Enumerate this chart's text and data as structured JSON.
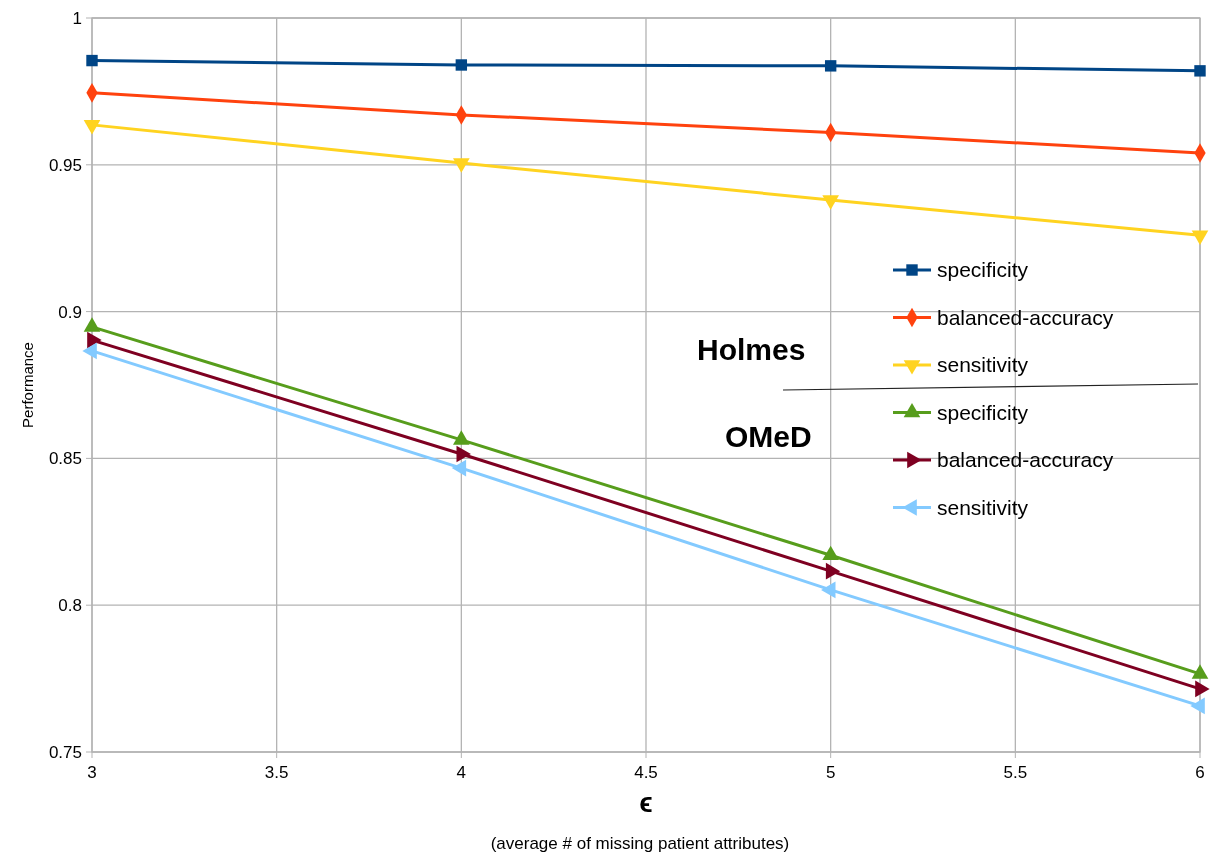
{
  "chart_data": {
    "type": "line",
    "xlabel": "ϵ",
    "ylabel": "Performance",
    "annotations": [
      "(average # of missing patient attributes)",
      "Holmes",
      "OMeD"
    ],
    "x": [
      3,
      4,
      5,
      6
    ],
    "series": [
      {
        "name": "specificity",
        "color": "#004586",
        "marker": "square",
        "values": [
          0.9855,
          0.984,
          0.9837,
          0.982
        ]
      },
      {
        "name": "balanced-accuracy",
        "color": "#ff420e",
        "marker": "diamond",
        "values": [
          0.9745,
          0.967,
          0.961,
          0.954
        ]
      },
      {
        "name": "sensitivity",
        "color": "#ffd320",
        "marker": "triangle",
        "values": [
          0.9636,
          0.9506,
          0.938,
          0.926
        ]
      },
      {
        "name": "specificity",
        "color": "#579d1c",
        "marker": "triangle",
        "values": [
          0.8948,
          0.8563,
          0.817,
          0.7766
        ]
      },
      {
        "name": "balanced-accuracy",
        "color": "#7e0021",
        "marker": "triangle",
        "values": [
          0.8903,
          0.8515,
          0.8116,
          0.7715
        ]
      },
      {
        "name": "sensitivity",
        "color": "#83caff",
        "marker": "triangle",
        "values": [
          0.8866,
          0.8467,
          0.8052,
          0.7657
        ]
      }
    ],
    "xlim": [
      3,
      6
    ],
    "xticks": [
      3,
      3.5,
      4,
      4.5,
      5,
      5.5,
      6
    ],
    "ylim": [
      0.75,
      1
    ],
    "yticks": [
      0.75,
      0.8,
      0.85,
      0.9,
      0.95,
      1
    ],
    "grid": true,
    "legend": "right",
    "line_style": "solid"
  }
}
